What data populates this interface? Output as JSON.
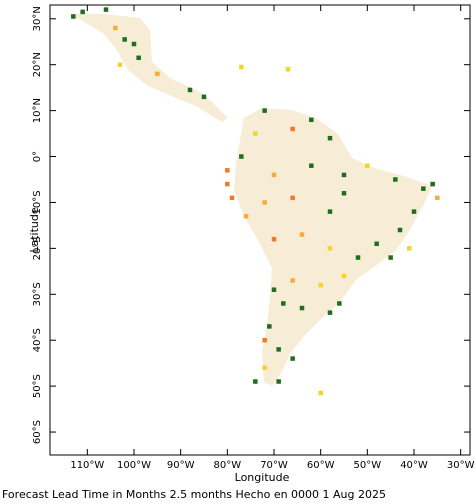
{
  "chart_data": {
    "type": "map",
    "xlabel": "Longitude",
    "ylabel": "Latitude",
    "xlim": [
      -118,
      -28
    ],
    "ylim": [
      -65,
      33
    ],
    "x_ticks": [
      {
        "value": -110,
        "label": "110°W"
      },
      {
        "value": -100,
        "label": "100°W"
      },
      {
        "value": -90,
        "label": "90°W"
      },
      {
        "value": -80,
        "label": "80°W"
      },
      {
        "value": -70,
        "label": "70°W"
      },
      {
        "value": -60,
        "label": "60°W"
      },
      {
        "value": -50,
        "label": "50°W"
      },
      {
        "value": -40,
        "label": "40°W"
      },
      {
        "value": -30,
        "label": "30°W"
      }
    ],
    "y_ticks": [
      {
        "value": 30,
        "label": "30°N"
      },
      {
        "value": 20,
        "label": "20°N"
      },
      {
        "value": 10,
        "label": "10°N"
      },
      {
        "value": 0,
        "label": "0°"
      },
      {
        "value": -10,
        "label": "10°S"
      },
      {
        "value": -20,
        "label": "20°S"
      },
      {
        "value": -30,
        "label": "30°S"
      },
      {
        "value": -40,
        "label": "40°S"
      },
      {
        "value": -50,
        "label": "50°S"
      },
      {
        "value": -60,
        "label": "60°S"
      }
    ],
    "category_colors": {
      "green": "#1f6e1f",
      "orange": "#f07a26",
      "light_orange": "#f5ad3a",
      "yellow": "#f6d22b"
    },
    "sample_cells": [
      {
        "lon": -113,
        "lat": 30.5,
        "color": "green"
      },
      {
        "lon": -111,
        "lat": 31.5,
        "color": "green"
      },
      {
        "lon": -106,
        "lat": 32,
        "color": "green"
      },
      {
        "lon": -104,
        "lat": 28,
        "color": "light_orange"
      },
      {
        "lon": -102,
        "lat": 25.5,
        "color": "green"
      },
      {
        "lon": -100,
        "lat": 24.5,
        "color": "green"
      },
      {
        "lon": -99,
        "lat": 21.5,
        "color": "green"
      },
      {
        "lon": -103,
        "lat": 20,
        "color": "yellow"
      },
      {
        "lon": -95,
        "lat": 18,
        "color": "light_orange"
      },
      {
        "lon": -88,
        "lat": 14.5,
        "color": "green"
      },
      {
        "lon": -85,
        "lat": 13,
        "color": "green"
      },
      {
        "lon": -77,
        "lat": 19.5,
        "color": "yellow"
      },
      {
        "lon": -67,
        "lat": 19,
        "color": "yellow"
      },
      {
        "lon": -72,
        "lat": 10,
        "color": "green"
      },
      {
        "lon": -62,
        "lat": 8,
        "color": "green"
      },
      {
        "lon": -58,
        "lat": 4,
        "color": "green"
      },
      {
        "lon": -66,
        "lat": 6,
        "color": "orange"
      },
      {
        "lon": -74,
        "lat": 5,
        "color": "yellow"
      },
      {
        "lon": -77,
        "lat": 0,
        "color": "green"
      },
      {
        "lon": -80,
        "lat": -3,
        "color": "orange"
      },
      {
        "lon": -70,
        "lat": -4,
        "color": "light_orange"
      },
      {
        "lon": -62,
        "lat": -2,
        "color": "green"
      },
      {
        "lon": -55,
        "lat": -4,
        "color": "green"
      },
      {
        "lon": -50,
        "lat": -2,
        "color": "yellow"
      },
      {
        "lon": -44,
        "lat": -5,
        "color": "green"
      },
      {
        "lon": -38,
        "lat": -7,
        "color": "green"
      },
      {
        "lon": -36,
        "lat": -6,
        "color": "green"
      },
      {
        "lon": -40,
        "lat": -12,
        "color": "green"
      },
      {
        "lon": -43,
        "lat": -16,
        "color": "green"
      },
      {
        "lon": -48,
        "lat": -19,
        "color": "green"
      },
      {
        "lon": -45,
        "lat": -22,
        "color": "green"
      },
      {
        "lon": -55,
        "lat": -8,
        "color": "green"
      },
      {
        "lon": -58,
        "lat": -12,
        "color": "green"
      },
      {
        "lon": -66,
        "lat": -9,
        "color": "orange"
      },
      {
        "lon": -72,
        "lat": -10,
        "color": "light_orange"
      },
      {
        "lon": -76,
        "lat": -13,
        "color": "light_orange"
      },
      {
        "lon": -70,
        "lat": -18,
        "color": "orange"
      },
      {
        "lon": -64,
        "lat": -17,
        "color": "light_orange"
      },
      {
        "lon": -58,
        "lat": -20,
        "color": "yellow"
      },
      {
        "lon": -52,
        "lat": -22,
        "color": "green"
      },
      {
        "lon": -55,
        "lat": -26,
        "color": "yellow"
      },
      {
        "lon": -60,
        "lat": -28,
        "color": "yellow"
      },
      {
        "lon": -66,
        "lat": -27,
        "color": "light_orange"
      },
      {
        "lon": -70,
        "lat": -29,
        "color": "green"
      },
      {
        "lon": -68,
        "lat": -32,
        "color": "green"
      },
      {
        "lon": -64,
        "lat": -33,
        "color": "green"
      },
      {
        "lon": -58,
        "lat": -34,
        "color": "green"
      },
      {
        "lon": -56,
        "lat": -32,
        "color": "green"
      },
      {
        "lon": -71,
        "lat": -37,
        "color": "green"
      },
      {
        "lon": -72,
        "lat": -40,
        "color": "orange"
      },
      {
        "lon": -69,
        "lat": -42,
        "color": "green"
      },
      {
        "lon": -66,
        "lat": -44,
        "color": "green"
      },
      {
        "lon": -72,
        "lat": -46,
        "color": "yellow"
      },
      {
        "lon": -74,
        "lat": -49,
        "color": "green"
      },
      {
        "lon": -69,
        "lat": -49,
        "color": "green"
      },
      {
        "lon": -60,
        "lat": -51.5,
        "color": "yellow"
      },
      {
        "lon": -80,
        "lat": -6,
        "color": "orange"
      },
      {
        "lon": -79,
        "lat": -9,
        "color": "orange"
      },
      {
        "lon": -35,
        "lat": -9,
        "color": "light_orange"
      },
      {
        "lon": -41,
        "lat": -20,
        "color": "yellow"
      }
    ]
  },
  "caption": "Forecast Lead Time in Months 2.5 months Hecho en 0000 1 Aug 2025"
}
